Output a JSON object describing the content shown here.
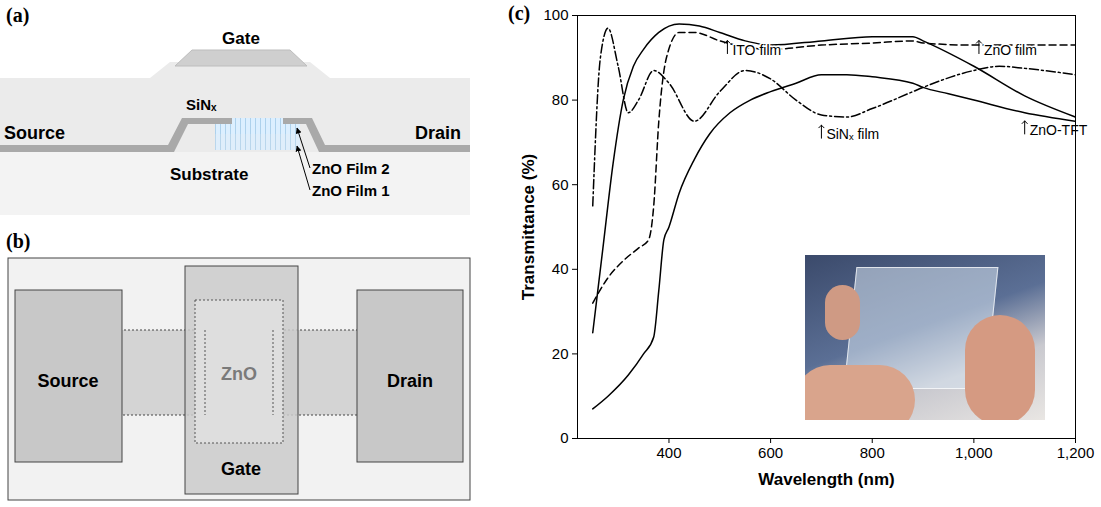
{
  "diagram_a": {
    "label": "(a)",
    "gate": "Gate",
    "insulator": "SiNₓ",
    "source": "Source",
    "drain": "Drain",
    "substrate": "Substrate",
    "film_2": "ZnO Film 2",
    "film_1": "ZnO Film 1"
  },
  "diagram_b": {
    "label": "(b)",
    "source": "Source",
    "channel": "ZnO",
    "drain": "Drain",
    "gate": "Gate"
  },
  "chart_data": {
    "label": "(c)",
    "type": "line",
    "x_label": "Wavelength (nm)",
    "y_label": "Transmittance (%)",
    "xlim": [
      220,
      1200
    ],
    "xticks": [
      400,
      600,
      800,
      1000,
      1200
    ],
    "ylim": [
      0,
      100
    ],
    "yticks": [
      0,
      20,
      40,
      60,
      80,
      100
    ],
    "grid": false,
    "series": [
      {
        "name": "ITO film",
        "color": "#000000",
        "line_style": "solid",
        "x": [
          250,
          270,
          290,
          310,
          330,
          350,
          380,
          420,
          460,
          500,
          550,
          600,
          700,
          800,
          880,
          900,
          1000,
          1100,
          1200
        ],
        "values": [
          25,
          45,
          65,
          80,
          88,
          92,
          96,
          98,
          97.5,
          96,
          94,
          93,
          94,
          95,
          95,
          94,
          88,
          81,
          76
        ]
      },
      {
        "name": "ZnO film",
        "color": "#000000",
        "line_style": "dashed",
        "x": [
          250,
          280,
          310,
          340,
          360,
          370,
          380,
          395,
          420,
          450,
          500,
          550,
          600,
          700,
          800,
          880,
          900,
          1000,
          1100,
          1200
        ],
        "values": [
          32,
          38,
          42,
          45,
          47,
          55,
          75,
          90,
          96,
          96,
          94,
          92.5,
          92,
          93,
          93.5,
          94,
          93.5,
          93,
          93,
          93
        ]
      },
      {
        "name": "SiNₓ film",
        "color": "#000000",
        "line_style": "dashdot",
        "x": [
          250,
          265,
          280,
          300,
          320,
          340,
          370,
          400,
          450,
          500,
          550,
          600,
          650,
          700,
          750,
          800,
          880,
          900,
          1000,
          1050,
          1100,
          1200
        ],
        "values": [
          55,
          90,
          97,
          88,
          77,
          80,
          87,
          84,
          75,
          82,
          87,
          85,
          80,
          76.5,
          76,
          78,
          82,
          83,
          87,
          88,
          87.5,
          86
        ]
      },
      {
        "name": "ZnO-TFT",
        "color": "#000000",
        "line_style": "solid",
        "x": [
          250,
          280,
          320,
          350,
          370,
          380,
          390,
          400,
          420,
          450,
          480,
          520,
          560,
          600,
          650,
          700,
          750,
          800,
          880,
          900,
          950,
          1000,
          1100,
          1200
        ],
        "values": [
          7,
          10,
          15,
          20,
          24,
          35,
          47,
          50,
          58,
          66,
          72,
          77,
          80,
          82,
          84,
          86,
          86,
          85.5,
          84,
          83,
          81.5,
          80,
          77,
          75
        ]
      }
    ],
    "annotations": [
      {
        "text": "ITO film",
        "x": 515,
        "y": 91
      },
      {
        "text": "ZnO film",
        "x": 1010,
        "y": 91
      },
      {
        "text": "SiNₓ film",
        "x": 700,
        "y": 71
      },
      {
        "text": "ZnO-TFT",
        "x": 1100,
        "y": 72
      }
    ]
  }
}
